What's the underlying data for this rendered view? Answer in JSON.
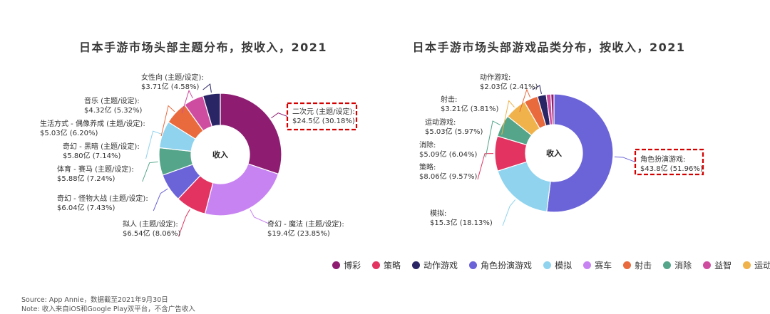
{
  "colors": {
    "博彩": "#8e1d72",
    "策略": "#e33461",
    "动作游戏": "#2a2666",
    "角色扮演游戏": "#6b63d8",
    "模拟": "#8fd3ef",
    "赛车": "#c883f2",
    "射击": "#e86a3d",
    "消除": "#55a58a",
    "益智": "#cf4da0",
    "运动游戏": "#f0b24a"
  },
  "chart_data": [
    {
      "type": "pie",
      "subtype": "donut",
      "title": "日本手游市场头部主题分布，按收入，2021",
      "center_label": "收入",
      "unit": "亿美元",
      "slices": [
        {
          "label": "二次元 (主题/设定):",
          "value_text": "$24.5亿 (30.18%)",
          "value": 24.5,
          "percent": 30.18,
          "color_key": "博彩",
          "highlighted": true
        },
        {
          "label": "奇幻 - 魔法 (主题/设定):",
          "value_text": "$19.4亿 (23.85%)",
          "value": 19.4,
          "percent": 23.85,
          "color_key": "赛车"
        },
        {
          "label": "拟人 (主题/设定):",
          "value_text": "$6.54亿 (8.06%)",
          "value": 6.54,
          "percent": 8.06,
          "color_key": "策略"
        },
        {
          "label": "奇幻 - 怪物大战 (主题/设定):",
          "value_text": "$6.04亿 (7.43%)",
          "value": 6.04,
          "percent": 7.43,
          "color_key": "角色扮演游戏"
        },
        {
          "label": "体育 - 赛马 (主题/设定):",
          "value_text": "$5.88亿 (7.24%)",
          "value": 5.88,
          "percent": 7.24,
          "color_key": "消除"
        },
        {
          "label": "奇幻 - 黑暗 (主题/设定):",
          "value_text": "$5.80亿 (7.14%)",
          "value": 5.8,
          "percent": 7.14,
          "color_key": "模拟"
        },
        {
          "label": "生活方式 - 偶像养成 (主题/设定):",
          "value_text": "$5.03亿 (6.20%)",
          "value": 5.03,
          "percent": 6.2,
          "color_key": "射击"
        },
        {
          "label": "音乐 (主题/设定):",
          "value_text": "$4.32亿 (5.32%)",
          "value": 4.32,
          "percent": 5.32,
          "color_key": "益智"
        },
        {
          "label": "女性向 (主题/设定):",
          "value_text": "$3.71亿 (4.58%)",
          "value": 3.71,
          "percent": 4.58,
          "color_key": "动作游戏"
        }
      ]
    },
    {
      "type": "pie",
      "subtype": "donut",
      "title": "日本手游市场头部游戏品类分布，按收入，2021",
      "center_label": "收入",
      "unit": "亿美元",
      "slices": [
        {
          "label": "角色扮演游戏:",
          "value_text": "$43.8亿 (51.96%)",
          "value": 43.8,
          "percent": 51.96,
          "color_key": "角色扮演游戏",
          "highlighted": true
        },
        {
          "label": "模拟:",
          "value_text": "$15.3亿 (18.13%)",
          "value": 15.3,
          "percent": 18.13,
          "color_key": "模拟"
        },
        {
          "label": "策略:",
          "value_text": "$8.06亿 (9.57%)",
          "value": 8.06,
          "percent": 9.57,
          "color_key": "策略"
        },
        {
          "label": "消除:",
          "value_text": "$5.09亿 (6.04%)",
          "value": 5.09,
          "percent": 6.04,
          "color_key": "消除"
        },
        {
          "label": "运动游戏:",
          "value_text": "$5.03亿 (5.97%)",
          "value": 5.03,
          "percent": 5.97,
          "color_key": "运动游戏"
        },
        {
          "label": "射击:",
          "value_text": "$3.21亿 (3.81%)",
          "value": 3.21,
          "percent": 3.81,
          "color_key": "射击"
        },
        {
          "label": "动作游戏:",
          "value_text": "$2.03亿 (2.41%)",
          "value": 2.03,
          "percent": 2.41,
          "color_key": "动作游戏"
        },
        {
          "label": "",
          "value_text": "",
          "value": null,
          "percent": 1.27,
          "color_key": "益智"
        },
        {
          "label": "",
          "value_text": "",
          "value": null,
          "percent": 0.84,
          "color_key": "博彩"
        }
      ]
    }
  ],
  "legend": [
    "博彩",
    "策略",
    "动作游戏",
    "角色扮演游戏",
    "模拟",
    "赛车",
    "射击",
    "消除",
    "益智",
    "运动游戏"
  ],
  "footnotes": {
    "source": "Source: App Annie，数据截至2021年9月30日",
    "note": "Note: 收入来自iOS和Google Play双平台，不含广告收入"
  }
}
